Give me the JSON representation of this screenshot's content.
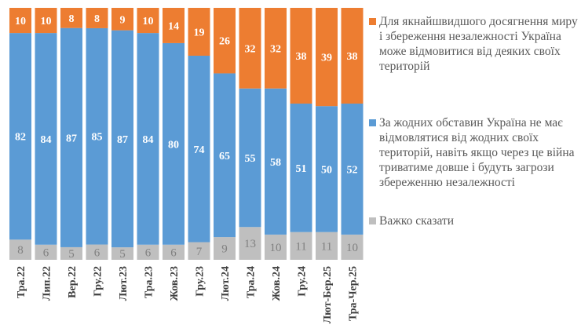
{
  "chart_data": {
    "type": "bar",
    "stacked": true,
    "categories": [
      "Тра.22",
      "Лип.22",
      "Вер.22",
      "Гру.22",
      "Лют.23",
      "Тра.23",
      "Жов.23",
      "Гру.23",
      "Лют.24",
      "Тра.24",
      "Жов.24",
      "Гру.24",
      "Лют-Бер.25",
      "Тра-Чер.25"
    ],
    "series": [
      {
        "name": "Важко сказати",
        "color": "#BFBFBF",
        "values": [
          8,
          6,
          5,
          6,
          5,
          6,
          6,
          7,
          9,
          13,
          10,
          11,
          11,
          10
        ]
      },
      {
        "name": "За жодних обставин Україна не має відмовлятися від жодних своїх територій, навіть якщо через це війна триватиме довше і будуть загрози збереженню незалежності",
        "color": "#5B9BD5",
        "values": [
          82,
          84,
          87,
          85,
          87,
          84,
          80,
          74,
          65,
          55,
          58,
          51,
          50,
          52
        ]
      },
      {
        "name": "Для якнайшвидшого досягнення миру і збереження незалежності Україна може відмовитися від деяких своїх територій",
        "color": "#ED7D31",
        "values": [
          10,
          10,
          8,
          8,
          9,
          10,
          14,
          19,
          26,
          32,
          32,
          38,
          39,
          38
        ]
      }
    ],
    "legend_position": "right",
    "grid": false,
    "data_labels": true
  }
}
